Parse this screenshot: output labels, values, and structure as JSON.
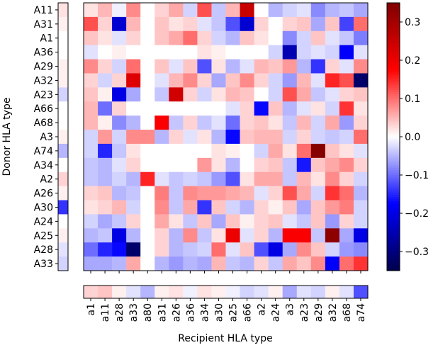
{
  "chart_data": {
    "type": "heatmap",
    "colormap": "seismic",
    "ylabel": "Donor HLA type",
    "xlabel": "Recipient HLA type",
    "rows": [
      "A11",
      "A31",
      "A1",
      "A36",
      "A29",
      "A32",
      "A23",
      "A66",
      "A68",
      "A3",
      "A74",
      "A34",
      "A2",
      "A26",
      "A30",
      "A24",
      "A25",
      "A28",
      "A33"
    ],
    "columns": [
      "a1",
      "a11",
      "a28",
      "a33",
      "a80",
      "a31",
      "a26",
      "a36",
      "a34",
      "a30",
      "a25",
      "a66",
      "a2",
      "a24",
      "a3",
      "a23",
      "a29",
      "a32",
      "a68",
      "a74"
    ],
    "values": [
      [
        0.02,
        0.05,
        -0.01,
        0.08,
        0,
        0.03,
        0.06,
        -0.03,
        0.12,
        -0.04,
        0.05,
        0.25,
        0,
        -0.05,
        -0.03,
        -0.02,
        -0.08,
        -0.05,
        -0.04,
        -0.06
      ],
      [
        0.12,
        0.03,
        -0.22,
        0.05,
        0,
        0.04,
        0.02,
        0.03,
        -0.02,
        -0.04,
        -0.12,
        -0.22,
        0.03,
        0,
        0.03,
        0.04,
        -0.06,
        0.04,
        -0.13,
        0.1
      ],
      [
        0.04,
        0.02,
        -0.02,
        0.03,
        0,
        0.04,
        0.06,
        0.1,
        0.03,
        -0.03,
        -0.05,
        0.04,
        0.02,
        0,
        -0.08,
        -0.03,
        0.04,
        -0.02,
        -0.04,
        -0.09
      ],
      [
        -0.02,
        0,
        0.01,
        0,
        0,
        0,
        0,
        0,
        0.02,
        0.01,
        0,
        0,
        0,
        -0.03,
        -0.25,
        -0.03,
        -0.02,
        -0.03,
        -0.18,
        -0.02
      ],
      [
        0.08,
        0.03,
        -0.03,
        0.1,
        0,
        0.04,
        -0.02,
        0.04,
        -0.12,
        0.02,
        -0.05,
        -0.02,
        0.05,
        0.04,
        0.07,
        -0.05,
        -0.14,
        0.03,
        -0.02,
        0.08
      ],
      [
        0.03,
        -0.03,
        0.03,
        0.22,
        0,
        -0.02,
        0.05,
        0.08,
        0.03,
        -0.06,
        0.04,
        0.08,
        0.03,
        -0.03,
        -0.07,
        0.05,
        -0.02,
        0.15,
        0.12,
        -0.32
      ],
      [
        0.04,
        0.01,
        -0.2,
        -0.06,
        0,
        -0.04,
        0.24,
        0.03,
        -0.03,
        0.02,
        0.05,
        0.04,
        0,
        -0.03,
        0.12,
        0.06,
        -0.04,
        -0.02,
        0.03,
        0.04
      ],
      [
        0.05,
        -0.1,
        0.03,
        0,
        0,
        0,
        0,
        0,
        0,
        0,
        -0.02,
        0.03,
        -0.17,
        0.04,
        -0.05,
        -0.02,
        0.02,
        -0.03,
        0.14,
        0.02
      ],
      [
        0.05,
        0.01,
        -0.08,
        -0.05,
        0,
        0.18,
        -0.04,
        0.03,
        -0.04,
        -0.02,
        -0.1,
        0.03,
        0.04,
        0.02,
        -0.04,
        0.05,
        -0.03,
        0.06,
        -0.07,
        0.03
      ],
      [
        -0.03,
        0.07,
        -0.03,
        0.08,
        0.08,
        -0.05,
        0.03,
        -0.02,
        0.02,
        -0.05,
        -0.17,
        0.04,
        0.05,
        0.05,
        -0.03,
        0.03,
        -0.03,
        -0.04,
        -0.03,
        0.1
      ],
      [
        -0.03,
        -0.15,
        -0.04,
        0.02,
        0,
        0,
        0,
        0,
        0,
        0.02,
        0.01,
        0,
        -0.03,
        0.06,
        0.02,
        0.1,
        0.34,
        0.04,
        0.02,
        -0.02
      ],
      [
        -0.04,
        -0.05,
        -0.02,
        0.03,
        0,
        0,
        0,
        0,
        0.07,
        0.02,
        -0.05,
        0,
        0.03,
        0.04,
        -0.04,
        -0.16,
        0.04,
        0.06,
        0.08,
        0.03
      ],
      [
        -0.04,
        -0.05,
        -0.03,
        -0.05,
        0.15,
        -0.02,
        -0.04,
        -0.03,
        -0.04,
        -0.07,
        -0.12,
        0.02,
        0.06,
        0.06,
        -0.04,
        0.05,
        0.02,
        0.08,
        0.03,
        -0.03
      ],
      [
        0.03,
        0.04,
        -0.05,
        -0.04,
        0,
        0.09,
        -0.04,
        0.08,
        0.07,
        0.07,
        0.06,
        0.05,
        -0.02,
        0.03,
        0.12,
        0.06,
        -0.03,
        0.14,
        0.1,
        -0.05
      ],
      [
        0.02,
        0.03,
        0.05,
        -0.03,
        0,
        0.08,
        -0.04,
        0.06,
        -0.14,
        0.04,
        -0.03,
        -0.05,
        0.03,
        0.01,
        0.04,
        -0.06,
        0.04,
        0.07,
        0.09,
        -0.03
      ],
      [
        -0.03,
        -0.06,
        -0.04,
        0.03,
        0,
        0.06,
        0.02,
        -0.04,
        0.04,
        -0.06,
        0.04,
        0.01,
        0.03,
        0.04,
        -0.02,
        -0.04,
        0.04,
        -0.07,
        0.03,
        -0.03
      ],
      [
        -0.05,
        -0.04,
        -0.2,
        -0.05,
        0,
        0.03,
        -0.05,
        0.08,
        -0.04,
        0.02,
        0.2,
        -0.02,
        0.03,
        -0.05,
        0.18,
        0.18,
        -0.04,
        0.33,
        -0.06,
        -0.2
      ],
      [
        -0.1,
        -0.15,
        -0.17,
        -0.32,
        0,
        0.03,
        -0.05,
        -0.04,
        -0.03,
        0.1,
        -0.02,
        0.04,
        -0.12,
        -0.2,
        -0.06,
        0.08,
        0.04,
        -0.03,
        -0.07,
        -0.08
      ],
      [
        -0.06,
        -0.06,
        -0.05,
        0.06,
        0,
        -0.05,
        -0.07,
        -0.05,
        -0.06,
        0.05,
        -0.04,
        -0.05,
        0.03,
        -0.04,
        0.06,
        0.04,
        0.08,
        -0.18,
        0.1,
        0.14
      ]
    ],
    "row_values": [
      0.02,
      0.01,
      0,
      0,
      0.01,
      0.01,
      -0.03,
      0,
      0,
      0.01,
      -0.05,
      0,
      0.03,
      0.01,
      -0.14,
      0,
      0.01,
      -0.02,
      -0.03
    ],
    "column_values": [
      0.03,
      0.04,
      0.01,
      -0.02,
      -0.05,
      0.01,
      0.02,
      -0.01,
      0.02,
      0.01,
      -0.01,
      -0.03,
      -0.02,
      0.01,
      -0.06,
      -0.02,
      -0.03,
      0.01,
      -0.02,
      -0.12
    ],
    "vlim": [
      -0.35,
      0.35
    ],
    "colorbar_ticks": [
      0.3,
      0.2,
      0.1,
      {
        "value": 0,
        "label": "0.0"
      },
      {
        "value": -0.1,
        "label": "−0.1"
      },
      {
        "value": -0.2,
        "label": "−0.2"
      },
      {
        "value": -0.3,
        "label": "−0.3"
      }
    ]
  }
}
